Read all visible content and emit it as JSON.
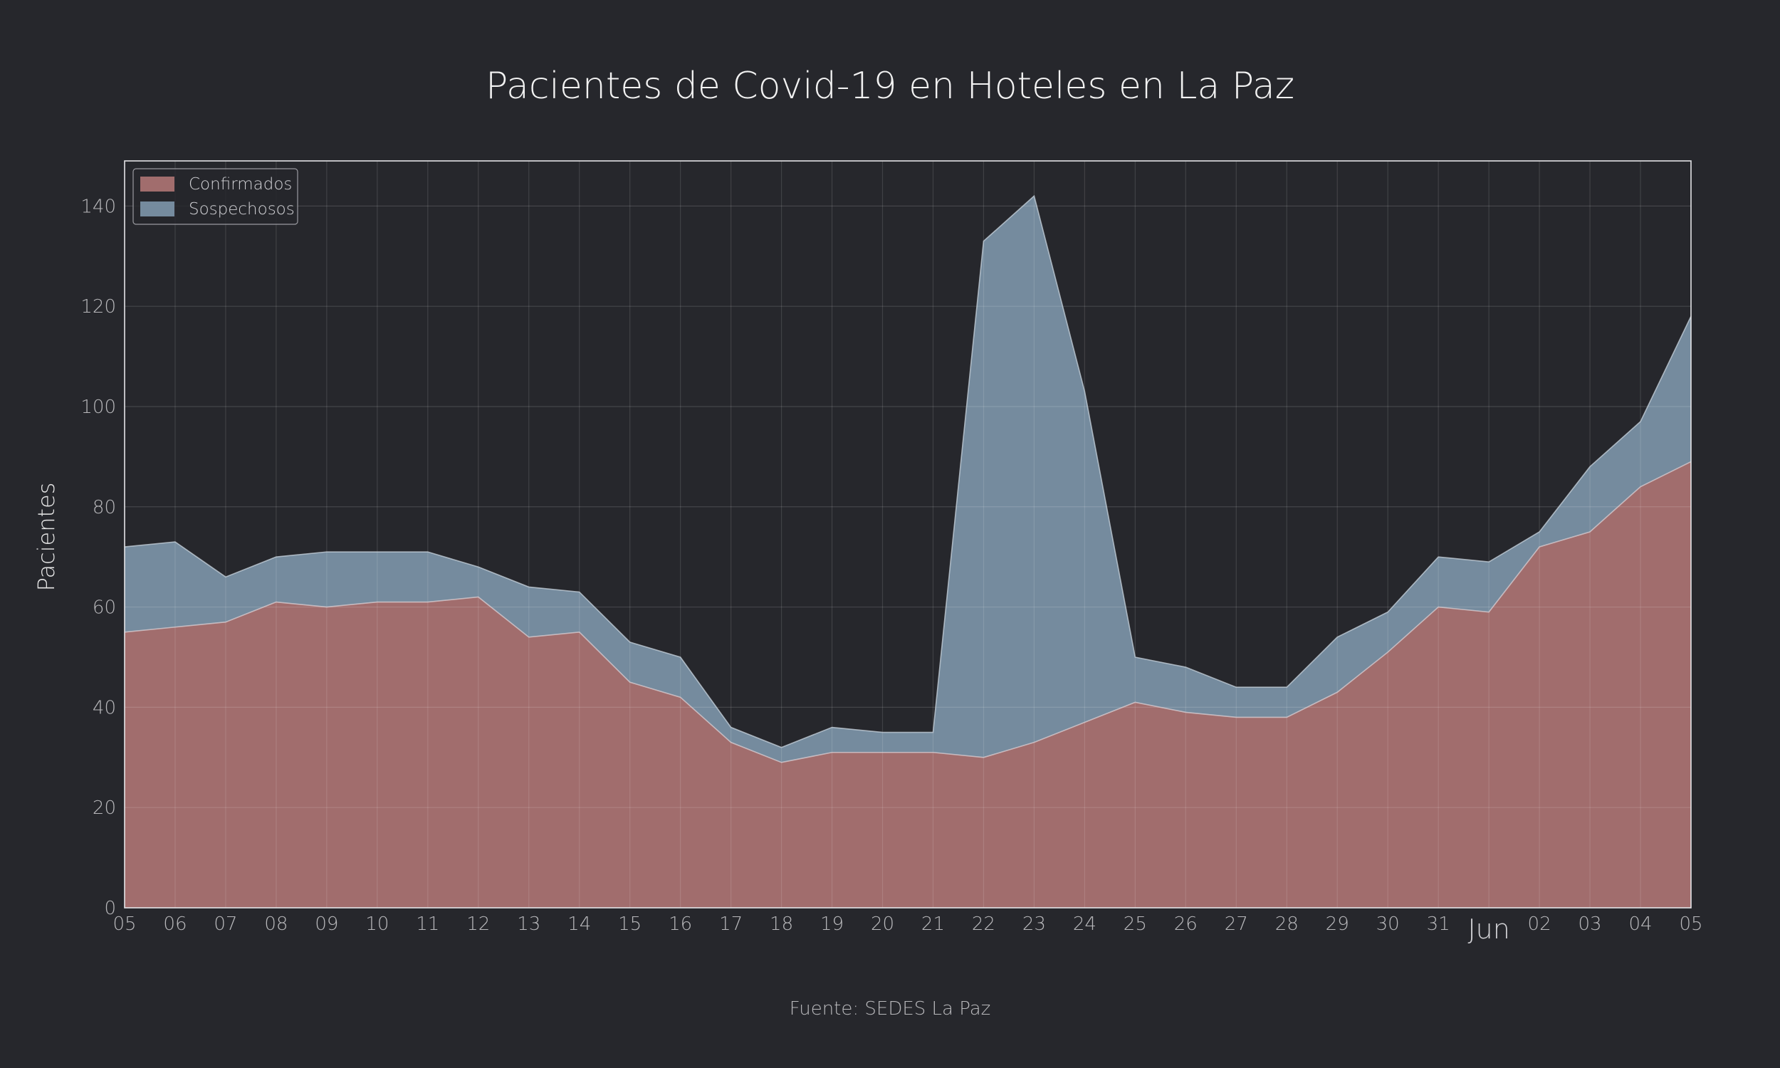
{
  "chart_data": {
    "type": "area",
    "stacked": true,
    "title": "Pacientes de Covid-19 en Hoteles en La Paz",
    "ylabel": "Pacientes",
    "source": "Fuente: SEDES La Paz",
    "x_ticks": [
      "05",
      "06",
      "07",
      "08",
      "09",
      "10",
      "11",
      "12",
      "13",
      "14",
      "15",
      "16",
      "17",
      "18",
      "19",
      "20",
      "21",
      "22",
      "23",
      "24",
      "25",
      "26",
      "27",
      "28",
      "29",
      "30",
      "31",
      "Jun",
      "02",
      "03",
      "04",
      "05"
    ],
    "x_dates": [
      "2020-05-05",
      "2020-05-06",
      "2020-05-07",
      "2020-05-08",
      "2020-05-09",
      "2020-05-10",
      "2020-05-11",
      "2020-05-12",
      "2020-05-13",
      "2020-05-14",
      "2020-05-15",
      "2020-05-16",
      "2020-05-17",
      "2020-05-18",
      "2020-05-19",
      "2020-05-20",
      "2020-05-21",
      "2020-05-22",
      "2020-05-23",
      "2020-05-24",
      "2020-05-25",
      "2020-05-26",
      "2020-05-27",
      "2020-05-28",
      "2020-05-29",
      "2020-05-30",
      "2020-05-31",
      "2020-06-01",
      "2020-06-02",
      "2020-06-03",
      "2020-06-04",
      "2020-06-05"
    ],
    "ylim": [
      0,
      149
    ],
    "y_ticks": [
      0,
      20,
      40,
      60,
      80,
      100,
      120,
      140
    ],
    "grid": true,
    "legend_position": "top-left",
    "series": [
      {
        "name": "Confirmados",
        "color": "#c07f7e",
        "values": [
          55,
          56,
          57,
          61,
          60,
          61,
          61,
          62,
          54,
          55,
          45,
          42,
          33,
          29,
          31,
          31,
          31,
          30,
          33,
          37,
          41,
          39,
          38,
          38,
          43,
          51,
          60,
          59,
          72,
          75,
          84,
          89
        ]
      },
      {
        "name": "Sospechosos",
        "color": "#8aa5bb",
        "values": [
          17,
          17,
          9,
          9,
          11,
          10,
          10,
          6,
          10,
          8,
          8,
          8,
          3,
          3,
          5,
          4,
          4,
          103,
          109,
          66,
          9,
          9,
          6,
          6,
          11,
          8,
          10,
          10,
          3,
          13,
          13,
          29
        ]
      }
    ]
  }
}
